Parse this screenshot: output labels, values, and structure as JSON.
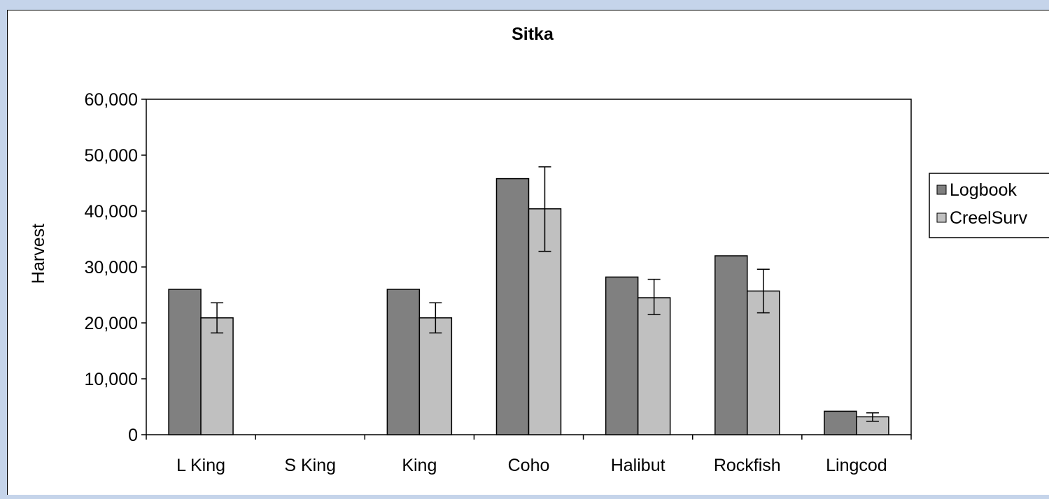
{
  "chart_data": {
    "type": "bar",
    "title": "Sitka",
    "xlabel": "",
    "ylabel": "Harvest",
    "ylim": [
      0,
      60000
    ],
    "yticks": [
      0,
      10000,
      20000,
      30000,
      40000,
      50000,
      60000
    ],
    "ytick_labels": [
      "0",
      "10,000",
      "20,000",
      "30,000",
      "40,000",
      "50,000",
      "60,000"
    ],
    "categories": [
      "L King",
      "S King",
      "King",
      "Coho",
      "Halibut",
      "Rockfish",
      "Lingcod"
    ],
    "series": [
      {
        "name": "Logbook",
        "color": "#808080",
        "values": [
          26000,
          0,
          26000,
          45800,
          28200,
          32000,
          4200
        ]
      },
      {
        "name": "CreelSurv",
        "color": "#c0c0c0",
        "values": [
          20900,
          0,
          20900,
          40400,
          24500,
          25700,
          3200
        ],
        "error_low": [
          18200,
          0,
          18200,
          32800,
          21500,
          21800,
          2400
        ],
        "error_high": [
          23600,
          0,
          23600,
          47900,
          27800,
          29600,
          3900
        ]
      }
    ],
    "grid": false,
    "legend_position": "right"
  }
}
